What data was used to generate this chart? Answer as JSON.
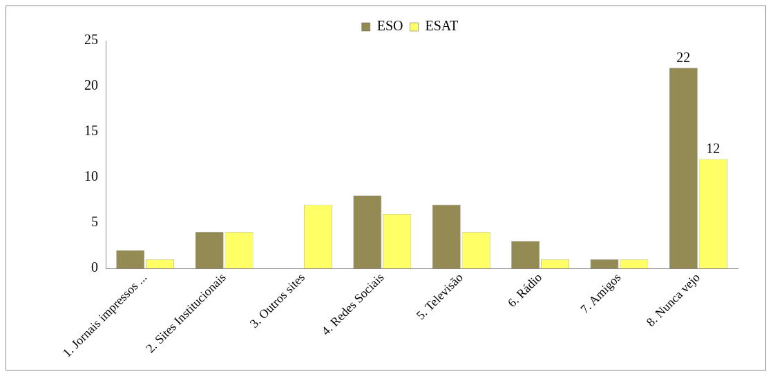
{
  "chart_data": {
    "type": "bar",
    "categories": [
      "1. Jornais impressos ...",
      "2. Sites Institucionais",
      "3. Outros sites",
      "4. Redes Sociais",
      "5. Televisão",
      "6. Rádio",
      "7. Amigos",
      "8. Nunca vejo"
    ],
    "series": [
      {
        "name": "ESO",
        "color": "#948a54",
        "values": [
          2,
          4,
          0,
          8,
          7,
          3,
          1,
          22
        ],
        "value_labels": [
          null,
          null,
          null,
          null,
          null,
          null,
          null,
          "22"
        ]
      },
      {
        "name": "ESAT",
        "color": "#ffff66",
        "values": [
          1,
          4,
          7,
          6,
          4,
          1,
          1,
          12
        ],
        "value_labels": [
          null,
          null,
          null,
          null,
          null,
          null,
          null,
          "12"
        ]
      }
    ],
    "ylim": [
      0,
      25
    ],
    "yticks": [
      0,
      5,
      10,
      15,
      20,
      25
    ],
    "grid": false,
    "legend": "top"
  }
}
